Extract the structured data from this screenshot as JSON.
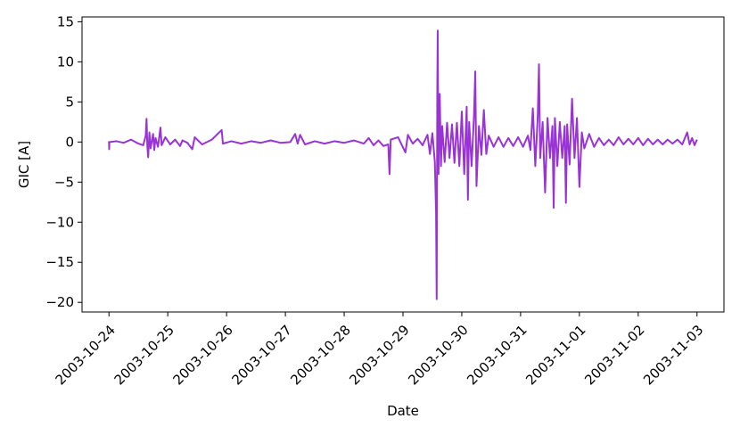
{
  "chart_data": {
    "type": "line",
    "title": "",
    "xlabel": "Date",
    "ylabel": "GIC [A]",
    "xlim": [
      "2003-10-23T13:00",
      "2003-11-03T11:00"
    ],
    "ylim": [
      -21.2,
      15.6
    ],
    "yticks": [
      15,
      10,
      5,
      0,
      -5,
      -10,
      -15,
      -20
    ],
    "ytick_labels": [
      "15",
      "10",
      "5",
      "0",
      "−5",
      "−10",
      "−15",
      "−20"
    ],
    "xticks": [
      "2003-10-24",
      "2003-10-25",
      "2003-10-26",
      "2003-10-27",
      "2003-10-28",
      "2003-10-29",
      "2003-10-30",
      "2003-10-31",
      "2003-11-01",
      "2003-11-02",
      "2003-11-03"
    ],
    "grid": false,
    "series": [
      {
        "color": "#9933d6",
        "points": [
          [
            "2003-10-24T00:00",
            0.1
          ],
          [
            "2003-10-24T00:05",
            -0.9
          ],
          [
            "2003-10-24T00:10",
            0.0
          ],
          [
            "2003-10-24T03:00",
            0.1
          ],
          [
            "2003-10-24T06:00",
            -0.1
          ],
          [
            "2003-10-24T09:00",
            0.3
          ],
          [
            "2003-10-24T12:00",
            -0.2
          ],
          [
            "2003-10-24T14:00",
            -0.4
          ],
          [
            "2003-10-24T15:00",
            0.8
          ],
          [
            "2003-10-24T15:20",
            2.9
          ],
          [
            "2003-10-24T15:40",
            -0.6
          ],
          [
            "2003-10-24T16:00",
            -1.9
          ],
          [
            "2003-10-24T16:30",
            1.2
          ],
          [
            "2003-10-24T17:00",
            -0.8
          ],
          [
            "2003-10-24T18:00",
            1.0
          ],
          [
            "2003-10-24T18:30",
            -1.0
          ],
          [
            "2003-10-24T19:00",
            0.5
          ],
          [
            "2003-10-24T20:00",
            -0.6
          ],
          [
            "2003-10-24T21:00",
            1.8
          ],
          [
            "2003-10-24T21:30",
            -0.4
          ],
          [
            "2003-10-24T23:00",
            0.6
          ],
          [
            "2003-10-25T01:00",
            -0.3
          ],
          [
            "2003-10-25T03:00",
            0.3
          ],
          [
            "2003-10-25T05:00",
            -0.5
          ],
          [
            "2003-10-25T06:00",
            0.2
          ],
          [
            "2003-10-25T08:00",
            -0.1
          ],
          [
            "2003-10-25T10:00",
            -0.9
          ],
          [
            "2003-10-25T11:00",
            0.6
          ],
          [
            "2003-10-25T14:00",
            -0.3
          ],
          [
            "2003-10-25T18:00",
            0.3
          ],
          [
            "2003-10-25T22:00",
            1.5
          ],
          [
            "2003-10-25T22:30",
            -0.2
          ],
          [
            "2003-10-26T02:00",
            0.1
          ],
          [
            "2003-10-26T06:00",
            -0.2
          ],
          [
            "2003-10-26T10:00",
            0.1
          ],
          [
            "2003-10-26T14:00",
            -0.1
          ],
          [
            "2003-10-26T18:00",
            0.2
          ],
          [
            "2003-10-26T22:00",
            -0.1
          ],
          [
            "2003-10-27T02:00",
            0.0
          ],
          [
            "2003-10-27T04:00",
            1.0
          ],
          [
            "2003-10-27T05:00",
            -0.2
          ],
          [
            "2003-10-27T06:00",
            0.9
          ],
          [
            "2003-10-27T08:00",
            -0.3
          ],
          [
            "2003-10-27T12:00",
            0.1
          ],
          [
            "2003-10-27T16:00",
            -0.2
          ],
          [
            "2003-10-27T20:00",
            0.1
          ],
          [
            "2003-10-28T00:00",
            -0.1
          ],
          [
            "2003-10-28T04:00",
            0.2
          ],
          [
            "2003-10-28T08:00",
            -0.2
          ],
          [
            "2003-10-28T10:00",
            0.5
          ],
          [
            "2003-10-28T12:00",
            -0.4
          ],
          [
            "2003-10-28T14:00",
            0.2
          ],
          [
            "2003-10-28T16:00",
            -0.5
          ],
          [
            "2003-10-28T18:00",
            -0.3
          ],
          [
            "2003-10-28T18:30",
            -4.0
          ],
          [
            "2003-10-28T19:00",
            0.3
          ],
          [
            "2003-10-28T22:00",
            0.6
          ],
          [
            "2003-10-29T01:00",
            -1.3
          ],
          [
            "2003-10-29T02:00",
            0.9
          ],
          [
            "2003-10-29T04:00",
            -0.2
          ],
          [
            "2003-10-29T06:00",
            0.4
          ],
          [
            "2003-10-29T08:00",
            -0.4
          ],
          [
            "2003-10-29T10:00",
            0.9
          ],
          [
            "2003-10-29T11:00",
            -1.5
          ],
          [
            "2003-10-29T12:00",
            1.1
          ],
          [
            "2003-10-29T13:00",
            -2.5
          ],
          [
            "2003-10-29T13:30",
            -8.8
          ],
          [
            "2003-10-29T13:45",
            -19.6
          ],
          [
            "2003-10-29T14:00",
            6.0
          ],
          [
            "2003-10-29T14:10",
            13.9
          ],
          [
            "2003-10-29T14:30",
            -4.0
          ],
          [
            "2003-10-29T15:00",
            6.0
          ],
          [
            "2003-10-29T15:30",
            -3.0
          ],
          [
            "2003-10-29T16:00",
            2.0
          ],
          [
            "2003-10-29T17:00",
            -2.5
          ],
          [
            "2003-10-29T18:00",
            2.4
          ],
          [
            "2003-10-29T19:00",
            -2.0
          ],
          [
            "2003-10-29T20:00",
            2.2
          ],
          [
            "2003-10-29T21:00",
            -2.6
          ],
          [
            "2003-10-29T22:00",
            2.4
          ],
          [
            "2003-10-29T23:00",
            -3.0
          ],
          [
            "2003-10-30T00:00",
            3.8
          ],
          [
            "2003-10-30T01:00",
            -4.0
          ],
          [
            "2003-10-30T02:00",
            4.4
          ],
          [
            "2003-10-30T02:30",
            -7.2
          ],
          [
            "2003-10-30T03:00",
            2.5
          ],
          [
            "2003-10-30T04:00",
            -3.0
          ],
          [
            "2003-10-30T05:00",
            3.4
          ],
          [
            "2003-10-30T05:30",
            8.8
          ],
          [
            "2003-10-30T06:00",
            -5.5
          ],
          [
            "2003-10-30T07:00",
            2.0
          ],
          [
            "2003-10-30T08:00",
            -1.6
          ],
          [
            "2003-10-30T09:00",
            4.0
          ],
          [
            "2003-10-30T10:00",
            -1.5
          ],
          [
            "2003-10-30T11:00",
            0.8
          ],
          [
            "2003-10-30T13:00",
            -0.6
          ],
          [
            "2003-10-30T15:00",
            0.6
          ],
          [
            "2003-10-30T17:00",
            -0.6
          ],
          [
            "2003-10-30T19:00",
            0.5
          ],
          [
            "2003-10-30T21:00",
            -0.5
          ],
          [
            "2003-10-30T23:00",
            0.6
          ],
          [
            "2003-10-31T01:00",
            -0.6
          ],
          [
            "2003-10-31T03:00",
            0.8
          ],
          [
            "2003-10-31T04:00",
            -1.0
          ],
          [
            "2003-10-31T05:00",
            4.2
          ],
          [
            "2003-10-31T06:00",
            -3.0
          ],
          [
            "2003-10-31T07:00",
            3.2
          ],
          [
            "2003-10-31T07:30",
            9.7
          ],
          [
            "2003-10-31T08:00",
            -2.0
          ],
          [
            "2003-10-31T09:00",
            2.5
          ],
          [
            "2003-10-31T10:00",
            -6.3
          ],
          [
            "2003-10-31T11:00",
            3.0
          ],
          [
            "2003-10-31T12:00",
            -2.0
          ],
          [
            "2003-10-31T13:00",
            2.0
          ],
          [
            "2003-10-31T13:30",
            -8.2
          ],
          [
            "2003-10-31T14:00",
            3.0
          ],
          [
            "2003-10-31T15:00",
            -3.0
          ],
          [
            "2003-10-31T16:00",
            2.5
          ],
          [
            "2003-10-31T17:00",
            -2.0
          ],
          [
            "2003-10-31T18:00",
            2.0
          ],
          [
            "2003-10-31T18:30",
            -7.6
          ],
          [
            "2003-10-31T19:00",
            2.2
          ],
          [
            "2003-10-31T20:00",
            -2.8
          ],
          [
            "2003-10-31T21:00",
            5.4
          ],
          [
            "2003-10-31T22:00",
            -2.0
          ],
          [
            "2003-10-31T23:00",
            3.0
          ],
          [
            "2003-11-01T00:00",
            -5.6
          ],
          [
            "2003-11-01T01:00",
            1.2
          ],
          [
            "2003-11-01T02:00",
            -0.8
          ],
          [
            "2003-11-01T04:00",
            1.0
          ],
          [
            "2003-11-01T06:00",
            -0.6
          ],
          [
            "2003-11-01T08:00",
            0.5
          ],
          [
            "2003-11-01T10:00",
            -0.4
          ],
          [
            "2003-11-01T12:00",
            0.3
          ],
          [
            "2003-11-01T14:00",
            -0.4
          ],
          [
            "2003-11-01T16:00",
            0.6
          ],
          [
            "2003-11-01T18:00",
            -0.3
          ],
          [
            "2003-11-01T20:00",
            0.4
          ],
          [
            "2003-11-01T22:00",
            -0.3
          ],
          [
            "2003-11-02T00:00",
            0.5
          ],
          [
            "2003-11-02T02:00",
            -0.4
          ],
          [
            "2003-11-02T04:00",
            0.4
          ],
          [
            "2003-11-02T06:00",
            -0.3
          ],
          [
            "2003-11-02T08:00",
            0.3
          ],
          [
            "2003-11-02T10:00",
            -0.3
          ],
          [
            "2003-11-02T12:00",
            0.3
          ],
          [
            "2003-11-02T14:00",
            -0.2
          ],
          [
            "2003-11-02T16:00",
            0.3
          ],
          [
            "2003-11-02T18:00",
            -0.3
          ],
          [
            "2003-11-02T20:00",
            1.2
          ],
          [
            "2003-11-02T21:00",
            -0.3
          ],
          [
            "2003-11-02T22:00",
            0.5
          ],
          [
            "2003-11-02T23:00",
            -0.4
          ],
          [
            "2003-11-03T00:00",
            0.3
          ]
        ]
      }
    ]
  }
}
